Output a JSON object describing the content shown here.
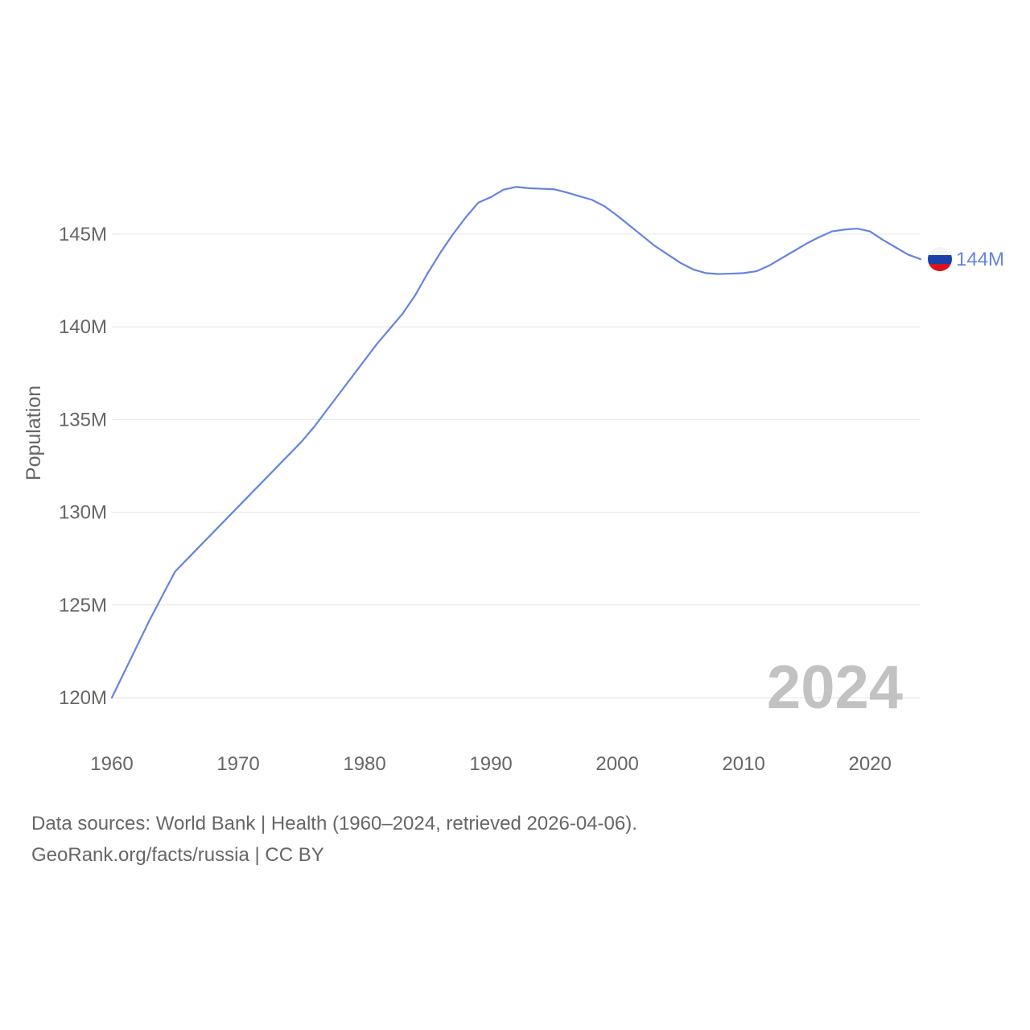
{
  "chart_data": {
    "type": "line",
    "title": "",
    "xlabel": "",
    "ylabel": "Population",
    "xlim": [
      1960,
      2024
    ],
    "ylim": [
      119000000,
      150000000
    ],
    "x_ticks": [
      1960,
      1970,
      1980,
      1990,
      2000,
      2010,
      2020
    ],
    "x_tick_labels": [
      "1960",
      "1970",
      "1980",
      "1990",
      "2000",
      "2010",
      "2020"
    ],
    "y_ticks": [
      120000000,
      125000000,
      130000000,
      135000000,
      140000000,
      145000000
    ],
    "y_tick_labels": [
      "120M",
      "125M",
      "130M",
      "135M",
      "140M",
      "145M"
    ],
    "grid": true,
    "current_year_label": "2024",
    "series": [
      {
        "color": "#6584e0",
        "end_label": "144M",
        "flag_icon": "russia-flag-icon",
        "x": [
          1960,
          1961,
          1962,
          1963,
          1964,
          1965,
          1966,
          1967,
          1968,
          1969,
          1970,
          1971,
          1972,
          1973,
          1974,
          1975,
          1976,
          1977,
          1978,
          1979,
          1980,
          1981,
          1982,
          1983,
          1984,
          1985,
          1986,
          1987,
          1988,
          1989,
          1990,
          1991,
          1992,
          1993,
          1994,
          1995,
          1996,
          1997,
          1998,
          1999,
          2000,
          2001,
          2002,
          2003,
          2004,
          2005,
          2006,
          2007,
          2008,
          2009,
          2010,
          2011,
          2012,
          2013,
          2014,
          2015,
          2016,
          2017,
          2018,
          2019,
          2020,
          2021,
          2022,
          2023,
          2024
        ],
        "y": [
          120000000,
          121400000,
          122800000,
          124200000,
          125500000,
          126800000,
          127500000,
          128200000,
          128900000,
          129600000,
          130300000,
          131000000,
          131700000,
          132400000,
          133100000,
          133800000,
          134600000,
          135500000,
          136400000,
          137300000,
          138200000,
          139100000,
          139900000,
          140700000,
          141700000,
          142900000,
          144000000,
          145000000,
          145900000,
          146700000,
          147000000,
          147400000,
          147550000,
          147480000,
          147450000,
          147420000,
          147250000,
          147050000,
          146850000,
          146500000,
          146000000,
          145450000,
          144900000,
          144350000,
          143900000,
          143450000,
          143100000,
          142900000,
          142850000,
          142870000,
          142900000,
          143000000,
          143300000,
          143700000,
          144100000,
          144500000,
          144850000,
          145150000,
          145250000,
          145300000,
          145150000,
          144700000,
          144300000,
          143900000,
          143650000
        ]
      }
    ]
  },
  "footer": {
    "line1": "Data sources: World Bank | Health (1960–2024, retrieved 2026-04-06).",
    "line2": "GeoRank.org/facts/russia | CC BY"
  }
}
